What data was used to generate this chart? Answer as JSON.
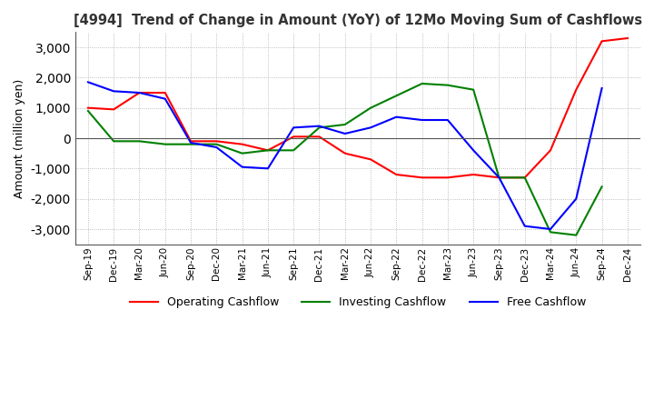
{
  "title": "[4994]  Trend of Change in Amount (YoY) of 12Mo Moving Sum of Cashflows",
  "ylabel": "Amount (million yen)",
  "ylim": [
    -3500,
    3500
  ],
  "yticks": [
    -3000,
    -2000,
    -1000,
    0,
    1000,
    2000,
    3000
  ],
  "x_labels": [
    "Sep-19",
    "Dec-19",
    "Mar-20",
    "Jun-20",
    "Sep-20",
    "Dec-20",
    "Mar-21",
    "Jun-21",
    "Sep-21",
    "Dec-21",
    "Mar-22",
    "Jun-22",
    "Sep-22",
    "Dec-22",
    "Mar-23",
    "Jun-23",
    "Sep-23",
    "Dec-23",
    "Mar-24",
    "Jun-24",
    "Sep-24",
    "Dec-24"
  ],
  "operating": [
    1000,
    950,
    1500,
    1500,
    -100,
    -100,
    -200,
    -400,
    50,
    50,
    -500,
    -700,
    -1200,
    -1300,
    -1300,
    -1200,
    -1300,
    -1300,
    -400,
    1600,
    3200,
    3300
  ],
  "investing": [
    900,
    -100,
    -100,
    -200,
    -200,
    -200,
    -500,
    -400,
    -400,
    350,
    450,
    1000,
    1400,
    1800,
    1750,
    1600,
    -1300,
    -1300,
    -3100,
    -3200,
    -1600,
    null
  ],
  "free": [
    1850,
    1550,
    1500,
    1300,
    -150,
    -300,
    -950,
    -1000,
    350,
    400,
    150,
    350,
    700,
    600,
    600,
    -400,
    -1300,
    -2900,
    -3000,
    -2000,
    1650,
    null
  ],
  "operating_color": "#ff0000",
  "investing_color": "#008000",
  "free_color": "#0000ff",
  "background_color": "#ffffff",
  "grid_color": "#aaaaaa"
}
